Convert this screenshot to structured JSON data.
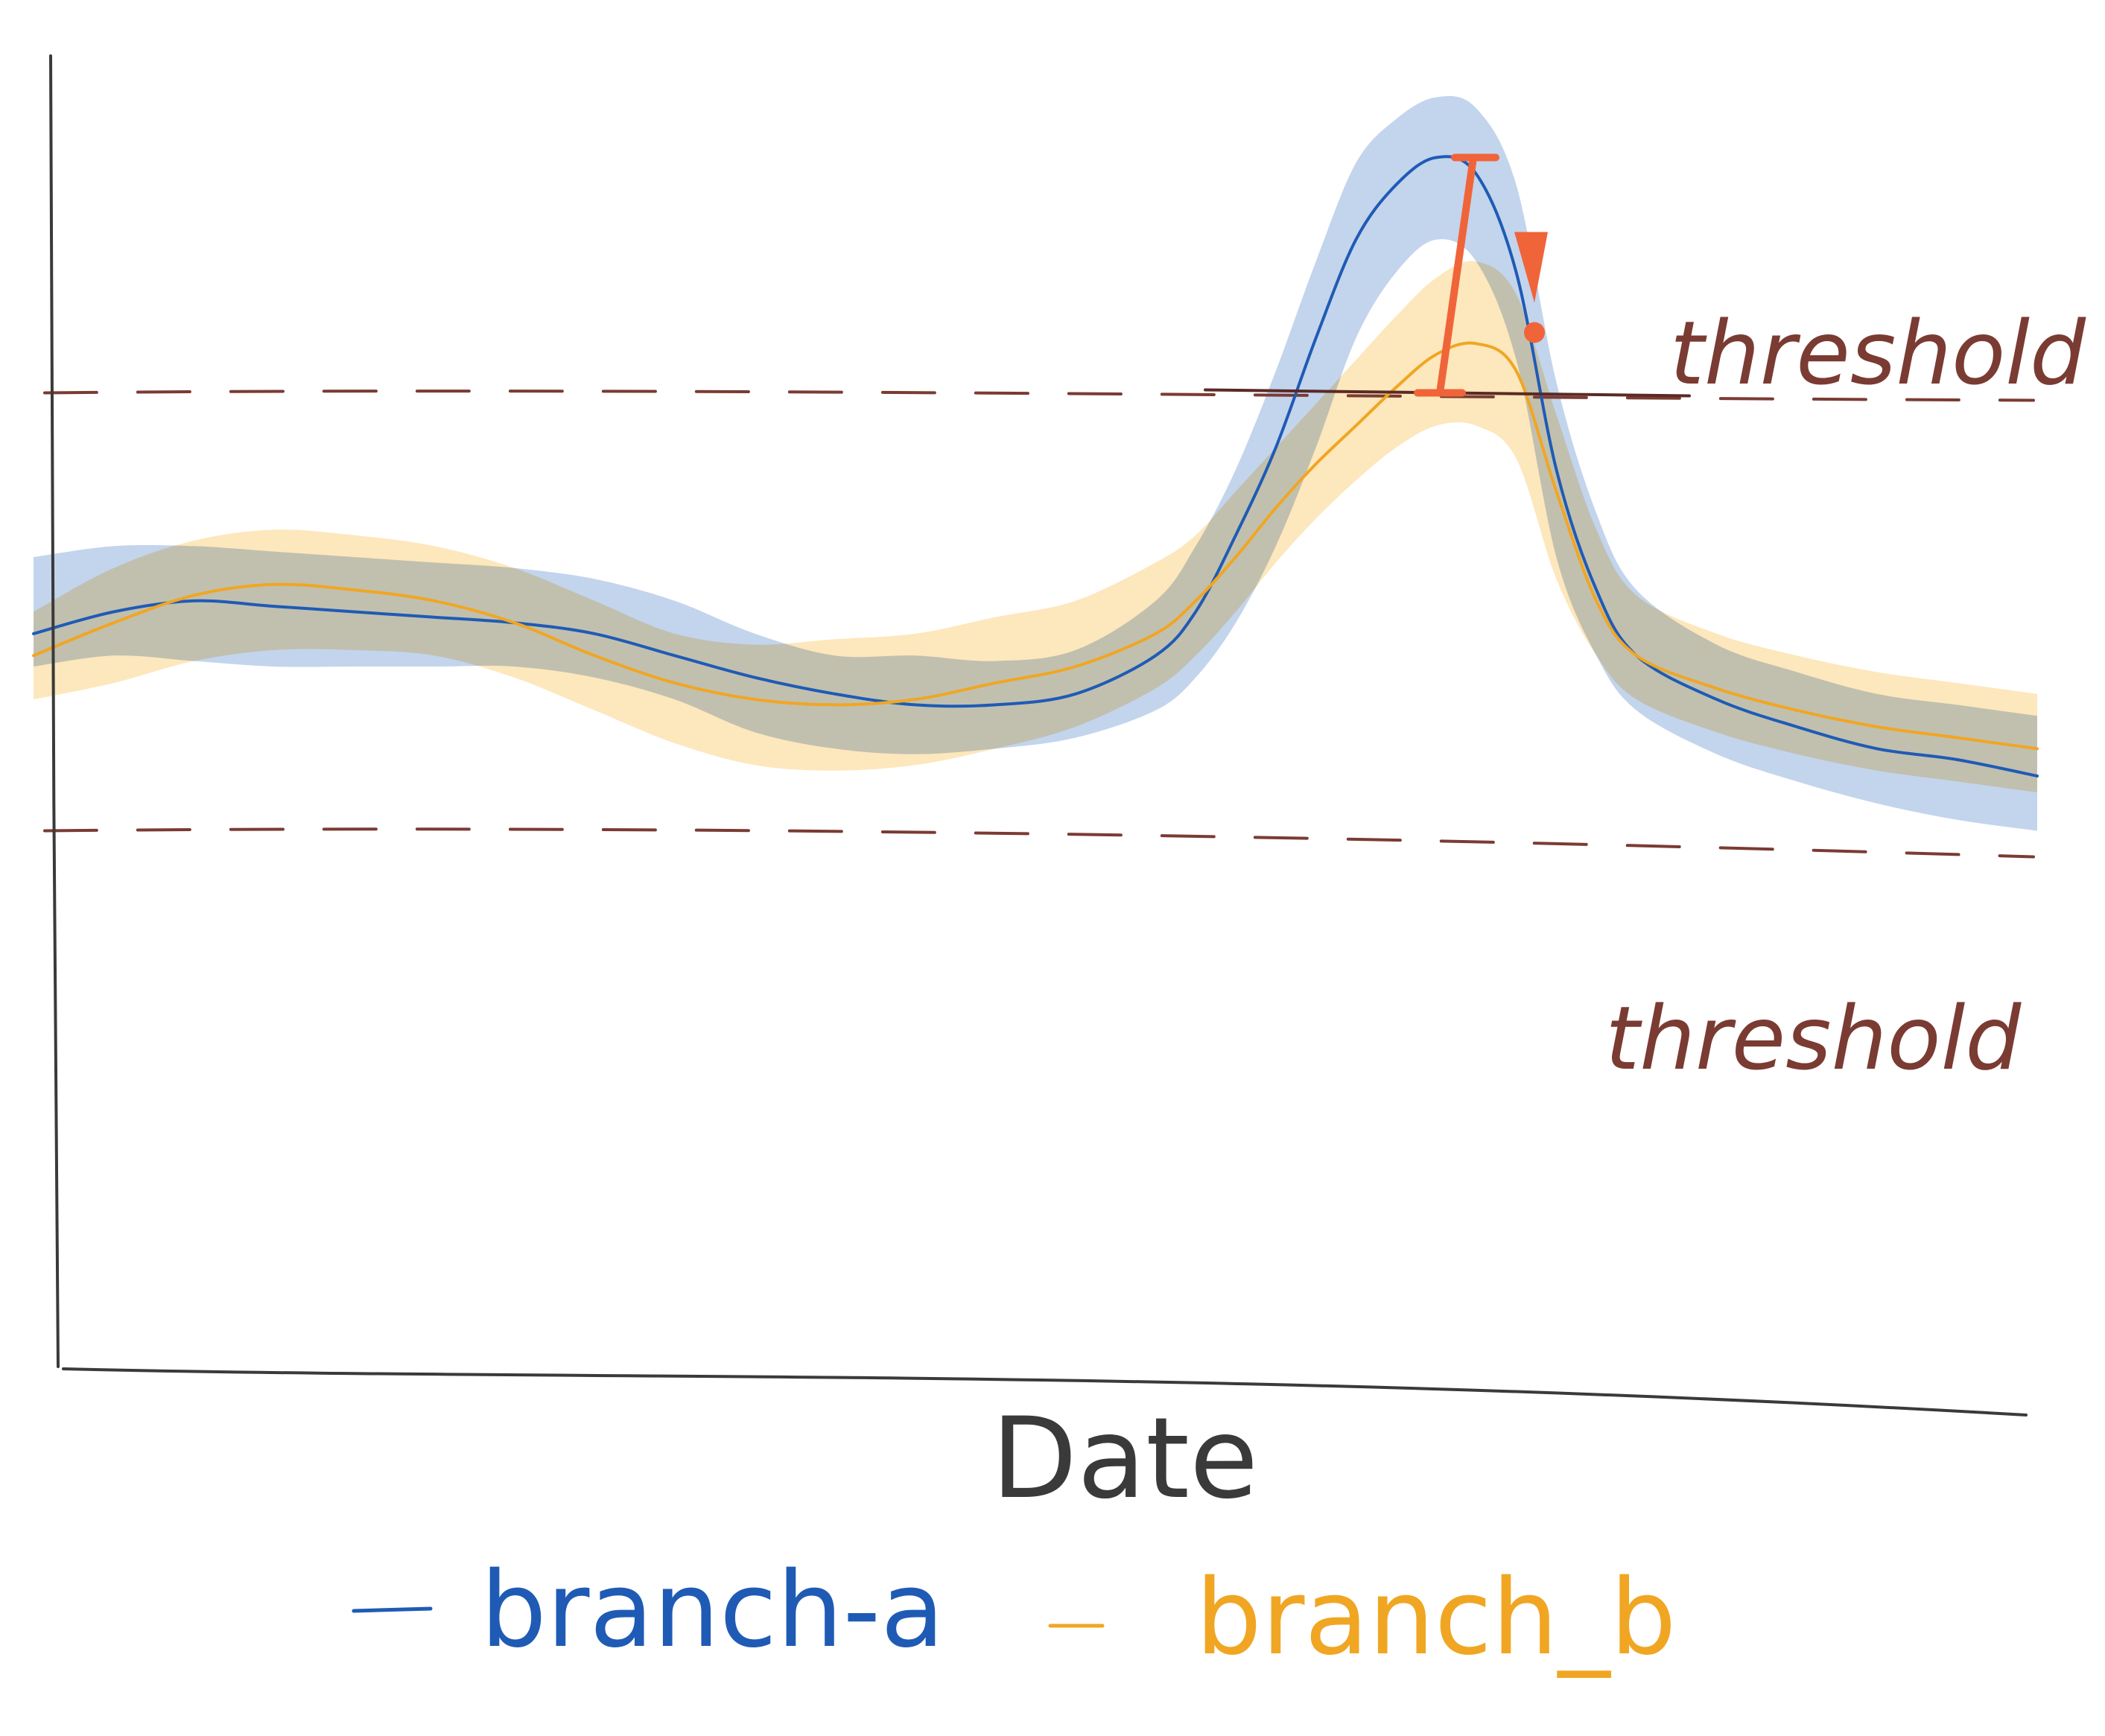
{
  "chart_data": {
    "type": "line",
    "title": "",
    "xlabel": "Date",
    "ylabel": "",
    "xlim": [
      0,
      100
    ],
    "ylim": [
      0,
      100
    ],
    "grid": false,
    "legend_position": "bottom",
    "thresholds": [
      {
        "label": "threshold",
        "value": 75,
        "style": "dashed",
        "color": "#7a3b33"
      },
      {
        "label": "threshold",
        "value": 35,
        "style": "dashed",
        "color": "#7a3b33"
      }
    ],
    "series": [
      {
        "name": "branch-a",
        "color": "#1f5bb5",
        "band_color": "#b9cdea",
        "x": [
          0,
          4,
          8,
          12,
          16,
          20,
          24,
          28,
          32,
          36,
          40,
          44,
          48,
          52,
          56,
          58,
          60,
          62,
          64,
          66,
          68,
          70,
          72,
          74,
          76,
          78,
          80,
          84,
          88,
          92,
          96,
          100
        ],
        "y": [
          53,
          55,
          56,
          55.5,
          55,
          54.5,
          54,
          53,
          51,
          49,
          47.5,
          46.5,
          46.5,
          47.5,
          51,
          55,
          62,
          70,
          80,
          89,
          94,
          96.5,
          95,
          86,
          68,
          57,
          51,
          47,
          44.5,
          42.5,
          41.5,
          40
        ],
        "band_low": [
          50,
          51,
          50.5,
          50,
          50,
          50,
          50,
          49,
          47,
          44,
          42.5,
          42,
          42.5,
          43.5,
          46,
          49,
          54,
          61,
          70,
          80,
          86,
          89,
          87,
          78,
          60,
          51,
          46,
          42,
          39.5,
          37.5,
          36,
          35
        ],
        "band_high": [
          60,
          61,
          61,
          60.5,
          60,
          59.5,
          59,
          58,
          56,
          53,
          51,
          51,
          50.5,
          51.5,
          56,
          61,
          68,
          77,
          87,
          96,
          100,
          102,
          101,
          94,
          76,
          64,
          57,
          52,
          49.5,
          47.5,
          46.5,
          45.5
        ]
      },
      {
        "name": "branch_b",
        "color": "#f0a623",
        "band_color": "#fde3b0",
        "x": [
          0,
          4,
          8,
          12,
          16,
          20,
          24,
          28,
          32,
          36,
          40,
          44,
          48,
          52,
          56,
          58,
          60,
          62,
          64,
          66,
          68,
          70,
          72,
          74,
          76,
          78,
          80,
          84,
          88,
          92,
          96,
          100
        ],
        "y": [
          51,
          54,
          56.5,
          57.5,
          57,
          56,
          54,
          51,
          48.5,
          47,
          46.5,
          47,
          48.5,
          50,
          53,
          56,
          60,
          64.5,
          68.5,
          72,
          75.5,
          78.5,
          79.5,
          77,
          66,
          56,
          51,
          48,
          46,
          44.5,
          43.5,
          42.5
        ],
        "band_low": [
          47,
          48.5,
          50.5,
          51.5,
          51.5,
          51,
          49,
          46,
          43,
          41,
          40.5,
          41,
          42.5,
          44.5,
          48,
          51,
          55,
          59.5,
          63.5,
          67,
          70,
          72,
          72,
          69,
          58,
          51,
          47,
          44,
          42,
          40.5,
          39.5,
          38.5
        ],
        "band_high": [
          55,
          59,
          61.5,
          62.5,
          62,
          61,
          59,
          56,
          53,
          52,
          52.5,
          53,
          54.5,
          56,
          59.5,
          62,
          66,
          70,
          74,
          78,
          82,
          85.5,
          87,
          84,
          73,
          62.5,
          56.5,
          53,
          51,
          49.5,
          48.5,
          47.5
        ]
      }
    ],
    "annotations": [
      {
        "type": "gap-marker",
        "x": 70,
        "y_from": 75,
        "y_to": 96.5,
        "color": "#f0643a",
        "text": ""
      }
    ]
  }
}
